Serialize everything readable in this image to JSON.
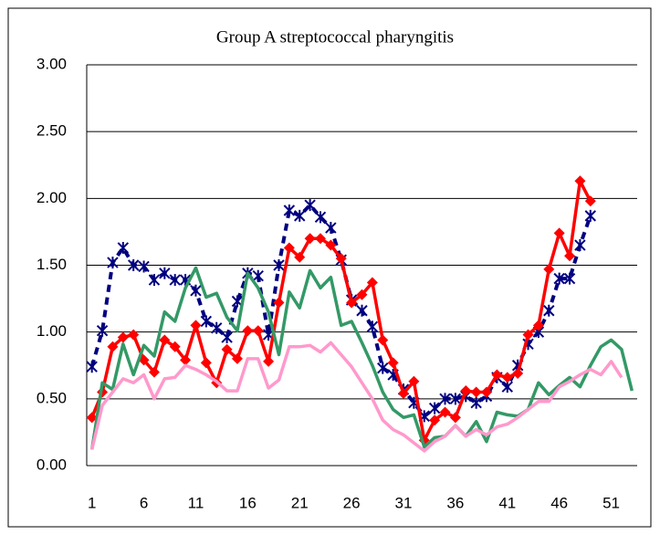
{
  "chart_data": {
    "type": "line",
    "title": "Group A streptococcal pharyngitis",
    "categories": [
      1,
      null,
      null,
      null,
      null,
      6,
      null,
      null,
      null,
      null,
      11,
      null,
      null,
      null,
      null,
      16,
      null,
      null,
      null,
      null,
      21,
      null,
      null,
      null,
      null,
      26,
      null,
      null,
      null,
      null,
      31,
      null,
      null,
      null,
      null,
      36,
      null,
      null,
      null,
      null,
      41,
      null,
      null,
      null,
      null,
      46,
      null,
      null,
      null,
      null,
      51,
      null,
      null
    ],
    "ylim": [
      0,
      3
    ],
    "yticks": [
      {
        "value": 0,
        "label": "0.00"
      },
      {
        "value": 0.5,
        "label": "0.50"
      },
      {
        "value": 1,
        "label": "1.00"
      },
      {
        "value": 1.5,
        "label": "1.50"
      },
      {
        "value": 2,
        "label": "2.00"
      },
      {
        "value": 2.5,
        "label": "2.50"
      },
      {
        "value": 3,
        "label": "3.00"
      }
    ],
    "grid": true,
    "series": [
      {
        "color": "#000080",
        "style": "dashed",
        "marker": "asterisk",
        "values": [
          0.74,
          1.01,
          1.52,
          1.63,
          1.5,
          1.49,
          1.39,
          1.44,
          1.39,
          1.39,
          1.31,
          1.08,
          1.03,
          0.96,
          1.23,
          1.44,
          1.42,
          0.98,
          1.5,
          1.91,
          1.87,
          1.95,
          1.86,
          1.78,
          1.54,
          1.24,
          1.16,
          1.04,
          0.73,
          0.68,
          0.57,
          0.47,
          0.37,
          0.43,
          0.5,
          0.5,
          0.52,
          0.47,
          0.52,
          0.66,
          0.59,
          0.75,
          0.91,
          1.0,
          1.16,
          1.4,
          1.4,
          1.65,
          1.87,
          null,
          null,
          null,
          null
        ]
      },
      {
        "color": "#ff0000",
        "style": "solid",
        "marker": "diamond",
        "values": [
          0.36,
          0.55,
          0.89,
          0.96,
          0.98,
          0.79,
          0.7,
          0.94,
          0.89,
          0.79,
          1.05,
          0.77,
          0.62,
          0.87,
          0.8,
          1.01,
          1.01,
          0.78,
          1.22,
          1.63,
          1.56,
          1.7,
          1.7,
          1.65,
          1.55,
          1.22,
          1.28,
          1.37,
          0.94,
          0.77,
          0.54,
          0.63,
          0.19,
          0.34,
          0.4,
          0.36,
          0.56,
          0.55,
          0.55,
          0.68,
          0.66,
          0.69,
          0.98,
          1.05,
          1.47,
          1.74,
          1.57,
          2.13,
          1.98,
          null,
          null,
          null,
          null
        ]
      },
      {
        "color": "#339966",
        "style": "solid",
        "marker": "none",
        "values": [
          0.12,
          0.62,
          0.57,
          0.91,
          0.68,
          0.9,
          0.82,
          1.15,
          1.08,
          1.33,
          1.48,
          1.26,
          1.29,
          1.11,
          1.01,
          1.44,
          1.33,
          1.15,
          0.83,
          1.3,
          1.18,
          1.46,
          1.33,
          1.41,
          1.05,
          1.08,
          0.92,
          0.75,
          0.55,
          0.42,
          0.36,
          0.38,
          0.14,
          0.21,
          0.22,
          0.3,
          0.22,
          0.33,
          0.18,
          0.4,
          0.38,
          0.37,
          0.42,
          0.62,
          0.53,
          0.6,
          0.66,
          0.59,
          0.75,
          0.89,
          0.94,
          0.87,
          0.56
        ]
      },
      {
        "color": "#ff99cc",
        "style": "solid",
        "marker": "none",
        "values": [
          0.12,
          0.45,
          0.55,
          0.65,
          0.62,
          0.68,
          0.5,
          0.65,
          0.66,
          0.75,
          0.72,
          0.68,
          0.63,
          0.56,
          0.56,
          0.8,
          0.8,
          0.58,
          0.64,
          0.89,
          0.89,
          0.9,
          0.85,
          0.92,
          0.83,
          0.74,
          0.62,
          0.5,
          0.34,
          0.27,
          0.23,
          0.17,
          0.11,
          0.18,
          0.22,
          0.3,
          0.22,
          0.27,
          0.23,
          0.29,
          0.31,
          0.36,
          0.42,
          0.48,
          0.48,
          0.59,
          0.63,
          0.68,
          0.72,
          0.68,
          0.78,
          0.66,
          null
        ]
      }
    ]
  }
}
